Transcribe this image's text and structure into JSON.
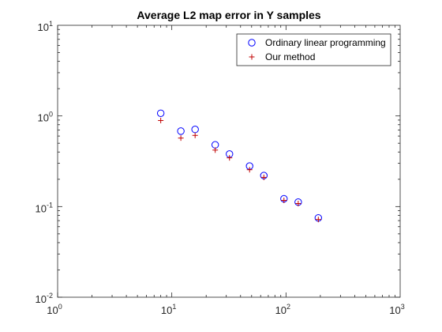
{
  "chart_data": {
    "type": "scatter",
    "title": "Average L2 map error in Y samples",
    "xlabel": "",
    "ylabel": "",
    "x_scale": "log",
    "y_scale": "log",
    "xlim": [
      1,
      1000
    ],
    "ylim": [
      0.01,
      10
    ],
    "x_ticks": [
      {
        "base": "10",
        "exp": "0",
        "value": 1
      },
      {
        "base": "10",
        "exp": "1",
        "value": 10
      },
      {
        "base": "10",
        "exp": "2",
        "value": 100
      },
      {
        "base": "10",
        "exp": "3",
        "value": 1000
      }
    ],
    "y_ticks": [
      {
        "base": "10",
        "exp": "-2",
        "value": 0.01
      },
      {
        "base": "10",
        "exp": "-1",
        "value": 0.1
      },
      {
        "base": "10",
        "exp": "0",
        "value": 1
      },
      {
        "base": "10",
        "exp": "1",
        "value": 10
      }
    ],
    "grid": false,
    "legend_position": "top-right",
    "series": [
      {
        "name": "Ordinary linear programming",
        "marker": "circle",
        "color": "#0000ff",
        "x": [
          8,
          12,
          16,
          24,
          32,
          48,
          64,
          96,
          128,
          192
        ],
        "y": [
          1.07,
          0.68,
          0.71,
          0.48,
          0.38,
          0.28,
          0.22,
          0.122,
          0.112,
          0.075
        ]
      },
      {
        "name": "Our method",
        "marker": "plus",
        "color": "#c00000",
        "x": [
          8,
          12,
          16,
          24,
          32,
          48,
          64,
          96,
          128,
          192
        ],
        "y": [
          0.89,
          0.57,
          0.61,
          0.42,
          0.345,
          0.255,
          0.21,
          0.117,
          0.108,
          0.072
        ]
      }
    ]
  }
}
